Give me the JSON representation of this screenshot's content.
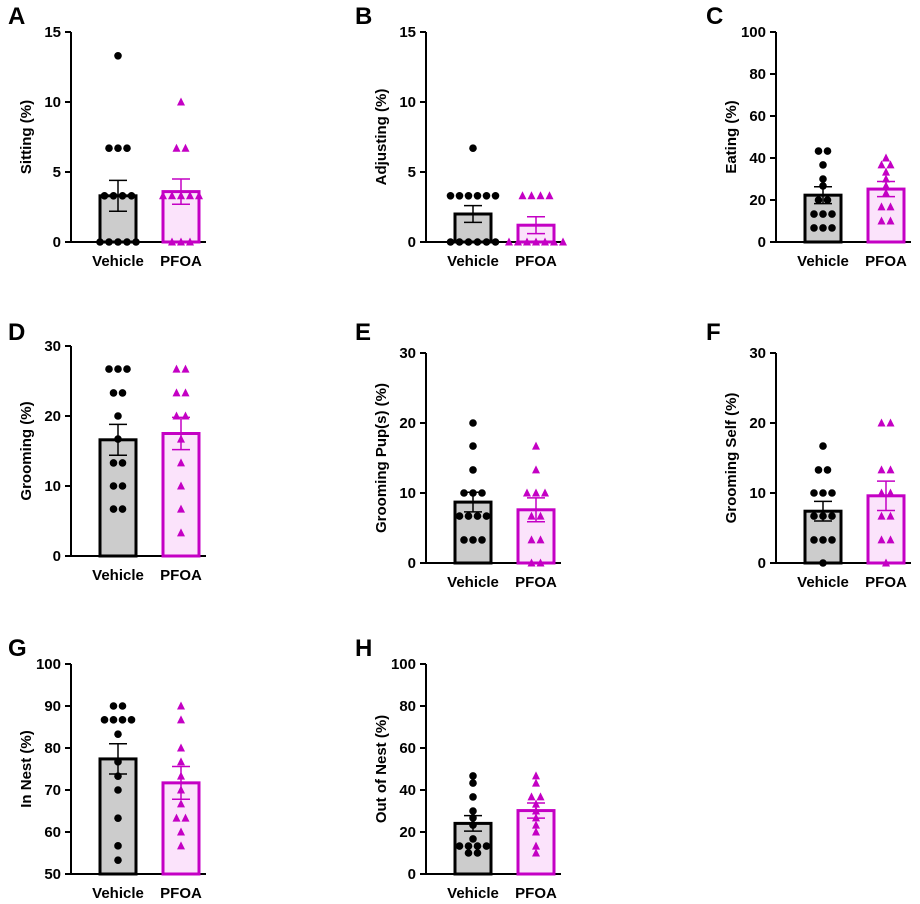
{
  "colors": {
    "vehicle": "#000000",
    "vehicle_fill": "#cccccc",
    "pfoa": "#c400c4",
    "pfoa_fill": "#fbe3fb"
  },
  "chart_data": [
    {
      "panel": "A",
      "type": "bar",
      "ylabel": "Sitting (%)",
      "ylim": [
        0,
        15
      ],
      "yticks": [
        0,
        5,
        10,
        15
      ],
      "categories": [
        "Vehicle",
        "PFOA"
      ],
      "series": [
        {
          "name": "Vehicle",
          "mean": 3.3,
          "sem": 1.1,
          "points": [
            0,
            0,
            0,
            0,
            0,
            3.3,
            3.3,
            3.3,
            3.3,
            6.7,
            6.7,
            6.7,
            13.3
          ]
        },
        {
          "name": "PFOA",
          "mean": 3.6,
          "sem": 0.9,
          "points": [
            0,
            0,
            0,
            3.3,
            3.3,
            3.3,
            3.3,
            3.3,
            6.7,
            6.7,
            10
          ]
        }
      ]
    },
    {
      "panel": "B",
      "type": "bar",
      "ylabel": "Adjusting (%)",
      "ylim": [
        0,
        15
      ],
      "yticks": [
        0,
        5,
        10,
        15
      ],
      "categories": [
        "Vehicle",
        "PFOA"
      ],
      "series": [
        {
          "name": "Vehicle",
          "mean": 2.0,
          "sem": 0.6,
          "points": [
            0,
            0,
            0,
            0,
            0,
            0,
            3.3,
            3.3,
            3.3,
            3.3,
            3.3,
            3.3,
            6.7
          ]
        },
        {
          "name": "PFOA",
          "mean": 1.2,
          "sem": 0.6,
          "points": [
            0,
            0,
            0,
            0,
            0,
            0,
            0,
            3.3,
            3.3,
            3.3,
            3.3
          ]
        }
      ]
    },
    {
      "panel": "C",
      "type": "bar",
      "ylabel": "Eating (%)",
      "ylim": [
        0,
        100
      ],
      "yticks": [
        0,
        20,
        40,
        60,
        80,
        100
      ],
      "categories": [
        "Vehicle",
        "PFOA"
      ],
      "series": [
        {
          "name": "Vehicle",
          "mean": 22.3,
          "sem": 4.0,
          "points": [
            6.7,
            6.7,
            6.7,
            13.3,
            13.3,
            13.3,
            20,
            20,
            26.7,
            30,
            36.7,
            43.3,
            43.3
          ]
        },
        {
          "name": "PFOA",
          "mean": 25.2,
          "sem": 3.6,
          "points": [
            10,
            10,
            16.7,
            16.7,
            23.3,
            26.7,
            30,
            33.3,
            36.7,
            36.7,
            40
          ]
        }
      ]
    },
    {
      "panel": "D",
      "type": "bar",
      "ylabel": "Grooming (%)",
      "ylim": [
        0,
        30
      ],
      "yticks": [
        0,
        10,
        20,
        30
      ],
      "categories": [
        "Vehicle",
        "PFOA"
      ],
      "series": [
        {
          "name": "Vehicle",
          "mean": 16.6,
          "sem": 2.2,
          "points": [
            6.7,
            6.7,
            10,
            10,
            13.3,
            13.3,
            16.7,
            20,
            23.3,
            23.3,
            26.7,
            26.7,
            26.7
          ]
        },
        {
          "name": "PFOA",
          "mean": 17.5,
          "sem": 2.3,
          "points": [
            3.3,
            6.7,
            10,
            13.3,
            16.7,
            20,
            20,
            23.3,
            23.3,
            26.7,
            26.7
          ]
        }
      ]
    },
    {
      "panel": "E",
      "type": "bar",
      "ylabel": "Grooming Pup(s) (%)",
      "ylim": [
        0,
        30
      ],
      "yticks": [
        0,
        10,
        20,
        30
      ],
      "categories": [
        "Vehicle",
        "PFOA"
      ],
      "series": [
        {
          "name": "Vehicle",
          "mean": 8.7,
          "sem": 1.4,
          "points": [
            3.3,
            3.3,
            3.3,
            6.7,
            6.7,
            6.7,
            6.7,
            10,
            10,
            10,
            13.3,
            16.7,
            20
          ]
        },
        {
          "name": "PFOA",
          "mean": 7.6,
          "sem": 1.7,
          "points": [
            0,
            0,
            3.3,
            3.3,
            6.7,
            6.7,
            10,
            10,
            10,
            13.3,
            16.7
          ]
        }
      ]
    },
    {
      "panel": "F",
      "type": "bar",
      "ylabel": "Grooming Self (%)",
      "ylim": [
        0,
        30
      ],
      "yticks": [
        0,
        10,
        20,
        30
      ],
      "categories": [
        "Vehicle",
        "PFOA"
      ],
      "series": [
        {
          "name": "Vehicle",
          "mean": 7.4,
          "sem": 1.4,
          "points": [
            0,
            3.3,
            3.3,
            3.3,
            6.7,
            6.7,
            6.7,
            10,
            10,
            10,
            13.3,
            13.3,
            16.7
          ]
        },
        {
          "name": "PFOA",
          "mean": 9.6,
          "sem": 2.1,
          "points": [
            0,
            3.3,
            3.3,
            6.7,
            6.7,
            10,
            10,
            13.3,
            13.3,
            20,
            20
          ]
        }
      ]
    },
    {
      "panel": "G",
      "type": "bar",
      "ylabel": "In Nest (%)",
      "ylim": [
        50,
        100
      ],
      "yticks": [
        50,
        60,
        70,
        80,
        90,
        100
      ],
      "categories": [
        "Vehicle",
        "PFOA"
      ],
      "series": [
        {
          "name": "Vehicle",
          "mean": 77.4,
          "sem": 3.6,
          "points": [
            53.3,
            56.7,
            63.3,
            70,
            73.3,
            76.7,
            83.3,
            86.7,
            86.7,
            86.7,
            86.7,
            90,
            90
          ]
        },
        {
          "name": "PFOA",
          "mean": 71.7,
          "sem": 3.9,
          "points": [
            56.7,
            60,
            63.3,
            63.3,
            66.7,
            70,
            73.3,
            76.7,
            80,
            86.7,
            90
          ]
        }
      ]
    },
    {
      "panel": "H",
      "type": "bar",
      "ylabel": "Out of Nest (%)",
      "ylim": [
        0,
        100
      ],
      "yticks": [
        0,
        20,
        40,
        60,
        80,
        100
      ],
      "categories": [
        "Vehicle",
        "PFOA"
      ],
      "series": [
        {
          "name": "Vehicle",
          "mean": 24.1,
          "sem": 3.7,
          "points": [
            10,
            10,
            13.3,
            13.3,
            13.3,
            13.3,
            16.7,
            23.3,
            26.7,
            30,
            36.7,
            43.3,
            46.7
          ]
        },
        {
          "name": "PFOA",
          "mean": 30.2,
          "sem": 3.6,
          "points": [
            10,
            13.3,
            20,
            23.3,
            26.7,
            30,
            33.3,
            36.7,
            36.7,
            43.3,
            46.7
          ]
        }
      ]
    }
  ]
}
